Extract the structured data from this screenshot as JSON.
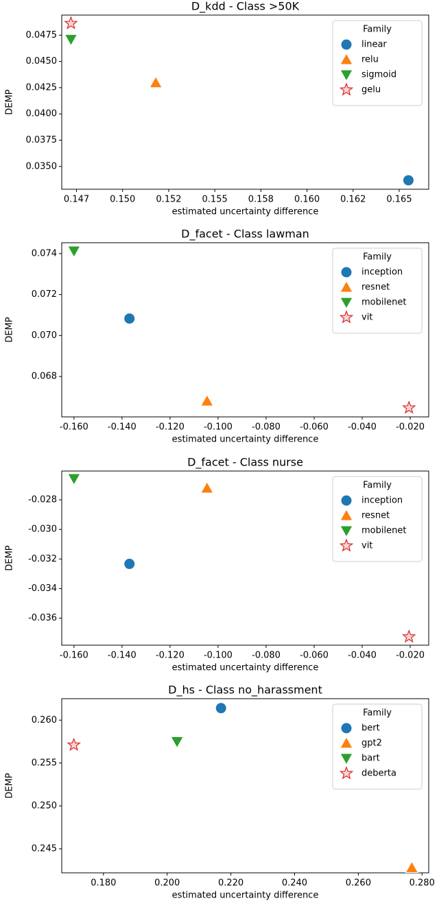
{
  "chart_data": [
    {
      "type": "scatter",
      "title": "D_kdd - Class >50K",
      "x_label": "estimated uncertainty difference",
      "y_label": "DEMP",
      "xlim": [
        0.1467,
        0.1666
      ],
      "ylim": [
        0.03283,
        0.04941
      ],
      "xticks": [
        {
          "value": 0.1475,
          "label": "0.147"
        },
        {
          "value": 0.15,
          "label": "0.150"
        },
        {
          "value": 0.1525,
          "label": "0.152"
        },
        {
          "value": 0.155,
          "label": "0.155"
        },
        {
          "value": 0.1575,
          "label": "0.158"
        },
        {
          "value": 0.16,
          "label": "0.160"
        },
        {
          "value": 0.1625,
          "label": "0.162"
        },
        {
          "value": 0.165,
          "label": "0.165"
        }
      ],
      "yticks": [
        {
          "value": 0.035,
          "label": "0.0350"
        },
        0.0375,
        {
          "value": 0.04,
          "label": "0.0400"
        },
        0.0425,
        {
          "value": 0.045,
          "label": "0.0450"
        },
        0.0475
      ],
      "legend_title": "Family",
      "legend": "upper right",
      "series": [
        {
          "name": "linear",
          "color": "#1f77b4",
          "marker": "circle",
          "x": [
            0.1655
          ],
          "values": [
            0.03368
          ]
        },
        {
          "name": "relu",
          "color": "#ff7f0e",
          "marker": "triangle-up",
          "x": [
            0.1518
          ],
          "values": [
            0.04296
          ]
        },
        {
          "name": "sigmoid",
          "color": "#2ca02c",
          "marker": "triangle-down",
          "x": [
            0.1472
          ],
          "values": [
            0.0471
          ]
        },
        {
          "name": "gelu",
          "color": "#d62728",
          "marker": "star",
          "x": [
            0.1472
          ],
          "values": [
            0.04862
          ]
        }
      ]
    },
    {
      "type": "scatter",
      "title": "D_facet - Class lawman",
      "x_label": "estimated uncertainty difference",
      "y_label": "DEMP",
      "xlim": [
        -0.1651,
        -0.0123
      ],
      "ylim": [
        0.06603,
        0.07453
      ],
      "xticks": [
        {
          "value": -0.16,
          "label": "-0.160"
        },
        {
          "value": -0.14,
          "label": "-0.140"
        },
        {
          "value": -0.12,
          "label": "-0.120"
        },
        {
          "value": -0.1,
          "label": "-0.100"
        },
        {
          "value": -0.08,
          "label": "-0.080"
        },
        {
          "value": -0.06,
          "label": "-0.060"
        },
        {
          "value": -0.04,
          "label": "-0.040"
        },
        {
          "value": -0.02,
          "label": "-0.020"
        }
      ],
      "yticks": [
        0.068,
        {
          "value": 0.07,
          "label": "0.070"
        },
        0.072,
        0.074
      ],
      "legend_title": "Family",
      "legend": "upper right",
      "series": [
        {
          "name": "inception",
          "color": "#1f77b4",
          "marker": "circle",
          "x": [
            -0.1369
          ],
          "values": [
            0.07083
          ]
        },
        {
          "name": "resnet",
          "color": "#ff7f0e",
          "marker": "triangle-up",
          "x": [
            -0.1046
          ],
          "values": [
            0.0668
          ]
        },
        {
          "name": "mobilenet",
          "color": "#2ca02c",
          "marker": "triangle-down",
          "x": [
            -0.16
          ],
          "values": [
            0.07413
          ]
        },
        {
          "name": "vit",
          "color": "#d62728",
          "marker": "star",
          "x": [
            -0.0205
          ],
          "values": [
            0.06647
          ]
        }
      ]
    },
    {
      "type": "scatter",
      "title": "D_facet - Class nurse",
      "x_label": "estimated uncertainty difference",
      "y_label": "DEMP",
      "xlim": [
        -0.1651,
        -0.0123
      ],
      "ylim": [
        -0.03783,
        -0.02605
      ],
      "xticks": [
        {
          "value": -0.16,
          "label": "-0.160"
        },
        {
          "value": -0.14,
          "label": "-0.140"
        },
        {
          "value": -0.12,
          "label": "-0.120"
        },
        {
          "value": -0.1,
          "label": "-0.100"
        },
        {
          "value": -0.08,
          "label": "-0.080"
        },
        {
          "value": -0.06,
          "label": "-0.060"
        },
        {
          "value": -0.04,
          "label": "-0.040"
        },
        {
          "value": -0.02,
          "label": "-0.020"
        }
      ],
      "yticks": [
        -0.036,
        -0.034,
        -0.032,
        {
          "value": -0.03,
          "label": "-0.030"
        },
        -0.028
      ],
      "legend_title": "Family",
      "legend": "upper right",
      "series": [
        {
          "name": "inception",
          "color": "#1f77b4",
          "marker": "circle",
          "x": [
            -0.1369
          ],
          "values": [
            -0.03233
          ]
        },
        {
          "name": "resnet",
          "color": "#ff7f0e",
          "marker": "triangle-up",
          "x": [
            -0.1046
          ],
          "values": [
            -0.02721
          ]
        },
        {
          "name": "mobilenet",
          "color": "#2ca02c",
          "marker": "triangle-down",
          "x": [
            -0.16
          ],
          "values": [
            -0.02656
          ]
        },
        {
          "name": "vit",
          "color": "#d62728",
          "marker": "star",
          "x": [
            -0.0205
          ],
          "values": [
            -0.03726
          ]
        }
      ]
    },
    {
      "type": "scatter",
      "title": "D_hs - Class no_harassment",
      "x_label": "estimated uncertainty difference",
      "y_label": "DEMP",
      "xlim": [
        0.1669,
        0.2821
      ],
      "ylim": [
        0.2422,
        0.2625
      ],
      "xticks": [
        {
          "value": 0.18,
          "label": "0.180"
        },
        {
          "value": 0.2,
          "label": "0.200"
        },
        {
          "value": 0.22,
          "label": "0.220"
        },
        {
          "value": 0.24,
          "label": "0.240"
        },
        {
          "value": 0.26,
          "label": "0.260"
        },
        {
          "value": 0.28,
          "label": "0.280"
        }
      ],
      "yticks": [
        0.245,
        {
          "value": 0.25,
          "label": "0.250"
        },
        0.255,
        {
          "value": 0.26,
          "label": "0.260"
        }
      ],
      "legend_title": "Family",
      "legend": "upper right",
      "series": [
        {
          "name": "bert",
          "color": "#1f77b4",
          "marker": "circle",
          "x": [
            0.2169
          ],
          "values": [
            0.2614
          ]
        },
        {
          "name": "gpt2",
          "color": "#ff7f0e",
          "marker": "triangle-up",
          "x": [
            0.2768
          ],
          "values": [
            0.2428
          ]
        },
        {
          "name": "bart",
          "color": "#2ca02c",
          "marker": "triangle-down",
          "x": [
            0.2031
          ],
          "values": [
            0.2575
          ]
        },
        {
          "name": "deberta",
          "color": "#d62728",
          "marker": "star",
          "x": [
            0.1707
          ],
          "values": [
            0.2571
          ]
        }
      ]
    }
  ]
}
